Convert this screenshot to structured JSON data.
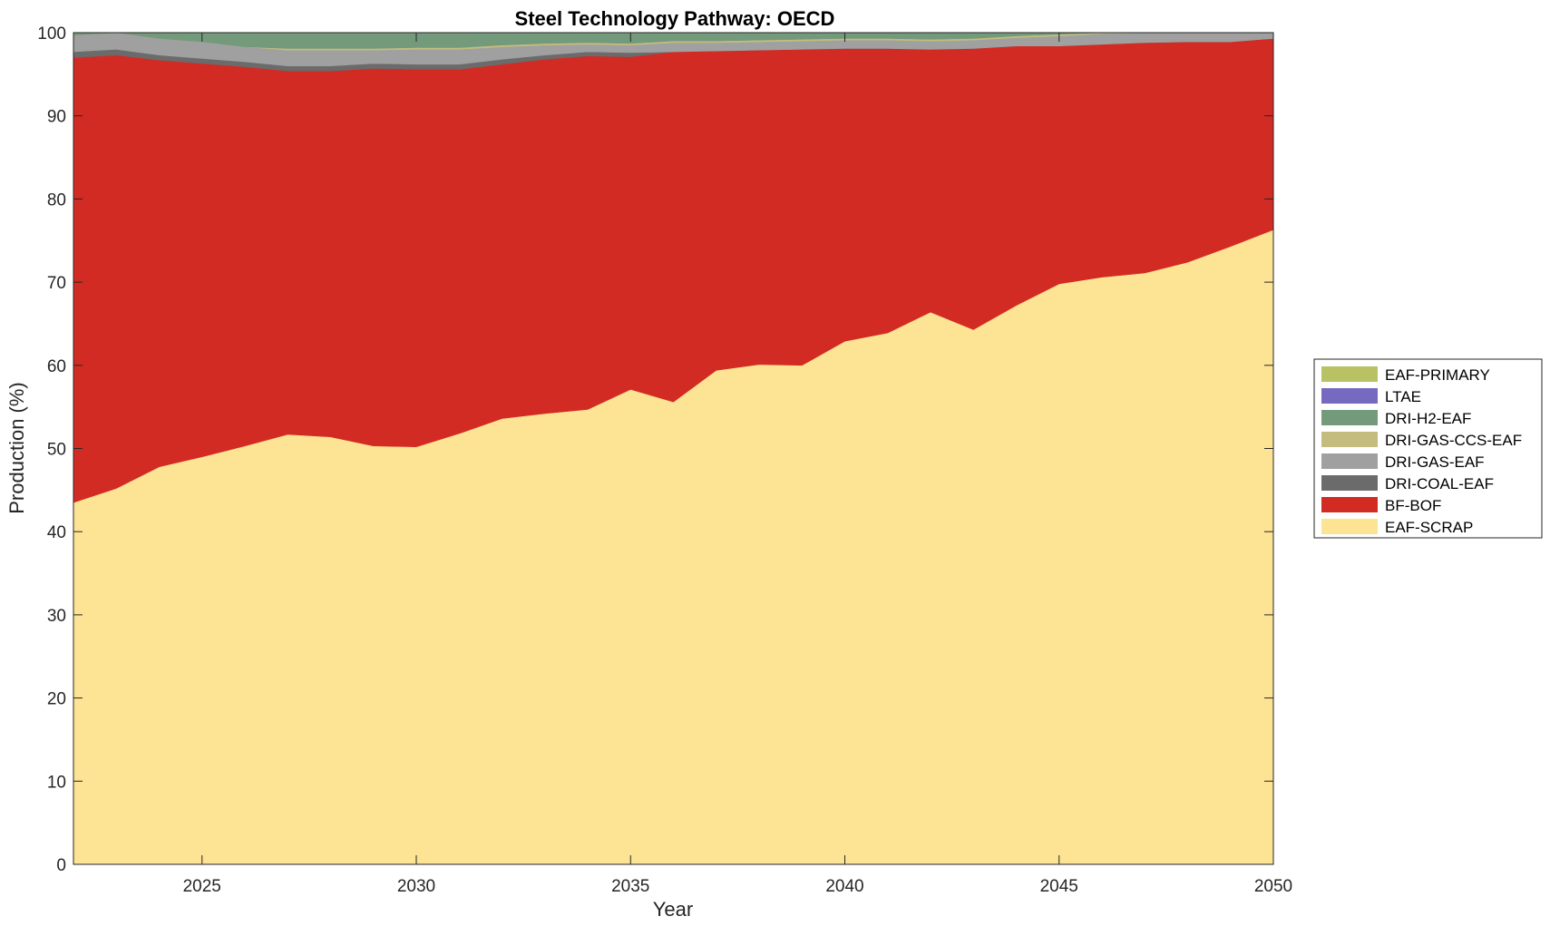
{
  "chart_data": {
    "type": "area",
    "stacked": true,
    "title": "Steel Technology Pathway: OECD",
    "xlabel": "Year",
    "ylabel": "Production (%)",
    "xlim": [
      2022,
      2050
    ],
    "ylim": [
      0,
      100
    ],
    "xticks": [
      2025,
      2030,
      2035,
      2040,
      2045,
      2050
    ],
    "yticks": [
      0,
      10,
      20,
      30,
      40,
      50,
      60,
      70,
      80,
      90,
      100
    ],
    "grid": false,
    "legend_position": "right",
    "x": [
      2022,
      2023,
      2024,
      2025,
      2026,
      2027,
      2028,
      2029,
      2030,
      2031,
      2032,
      2033,
      2034,
      2035,
      2036,
      2037,
      2038,
      2039,
      2040,
      2041,
      2042,
      2043,
      2044,
      2045,
      2046,
      2047,
      2048,
      2049,
      2050
    ],
    "series": [
      {
        "name": "EAF-SCRAP",
        "color": "#fde394",
        "values": [
          43.5,
          45.2,
          47.8,
          49.0,
          50.3,
          51.7,
          51.4,
          50.3,
          50.2,
          51.8,
          53.6,
          54.2,
          54.7,
          57.1,
          55.6,
          59.4,
          60.1,
          60.0,
          62.9,
          63.9,
          66.4,
          64.3,
          67.2,
          69.8,
          70.6,
          71.1,
          72.4,
          74.3,
          76.3
        ]
      },
      {
        "name": "BF-BOF",
        "color": "#d22b24",
        "values": [
          53.5,
          52.1,
          48.9,
          47.3,
          45.6,
          43.7,
          44.0,
          45.4,
          45.4,
          43.8,
          42.6,
          42.6,
          42.5,
          40.0,
          42.1,
          38.4,
          37.8,
          38.0,
          35.2,
          34.2,
          31.6,
          33.8,
          31.2,
          28.6,
          28.0,
          27.7,
          26.5,
          24.6,
          23.0
        ]
      },
      {
        "name": "DRI-COAL-EAF",
        "color": "#6b6b6b",
        "values": [
          0.7,
          0.7,
          0.6,
          0.6,
          0.6,
          0.6,
          0.6,
          0.6,
          0.6,
          0.6,
          0.6,
          0.5,
          0.5,
          0.5,
          0,
          0,
          0,
          0,
          0,
          0,
          0,
          0,
          0,
          0,
          0,
          0,
          0,
          0,
          0
        ]
      },
      {
        "name": "DRI-GAS-EAF",
        "color": "#a0a0a0",
        "values": [
          2.0,
          2.0,
          2.0,
          2.0,
          1.8,
          1.9,
          1.9,
          1.6,
          1.8,
          1.8,
          1.5,
          1.2,
          0.9,
          0.9,
          1.1,
          1.0,
          1.0,
          1.0,
          1.0,
          1.0,
          1.0,
          1.0,
          1.0,
          1.2,
          1.3,
          1.2,
          1.1,
          1.1,
          0.7
        ]
      },
      {
        "name": "DRI-GAS-CCS-EAF",
        "color": "#c4bc7e",
        "values": [
          0,
          0,
          0,
          0,
          0,
          0.2,
          0.2,
          0.2,
          0.2,
          0.2,
          0.2,
          0.2,
          0.2,
          0.2,
          0.2,
          0.2,
          0.2,
          0.2,
          0.2,
          0.2,
          0.2,
          0.2,
          0.2,
          0.2,
          0.1,
          0,
          0,
          0,
          0
        ]
      },
      {
        "name": "DRI-H2-EAF",
        "color": "#749a7c",
        "values": [
          0.3,
          0,
          0.7,
          1.1,
          1.7,
          1.9,
          1.9,
          1.9,
          1.8,
          1.8,
          1.5,
          1.3,
          1.2,
          1.3,
          1.0,
          1.0,
          0.9,
          0.8,
          0.7,
          0.7,
          0.8,
          0.7,
          0.4,
          0.2,
          0,
          0,
          0,
          0,
          0
        ]
      },
      {
        "name": "LTAE",
        "color": "#7569c0",
        "values": [
          0,
          0,
          0,
          0,
          0,
          0,
          0,
          0,
          0,
          0,
          0,
          0,
          0,
          0,
          0,
          0,
          0,
          0,
          0,
          0,
          0,
          0,
          0,
          0,
          0,
          0,
          0,
          0,
          0
        ]
      },
      {
        "name": "EAF-PRIMARY",
        "color": "#b8c264",
        "values": [
          0,
          0,
          0,
          0,
          0,
          0,
          0,
          0,
          0,
          0,
          0,
          0,
          0,
          0,
          0,
          0,
          0,
          0,
          0,
          0,
          0,
          0,
          0,
          0,
          0,
          0,
          0,
          0,
          0
        ]
      }
    ],
    "legend_order": [
      "EAF-PRIMARY",
      "LTAE",
      "DRI-H2-EAF",
      "DRI-GAS-CCS-EAF",
      "DRI-GAS-EAF",
      "DRI-COAL-EAF",
      "BF-BOF",
      "EAF-SCRAP"
    ]
  }
}
